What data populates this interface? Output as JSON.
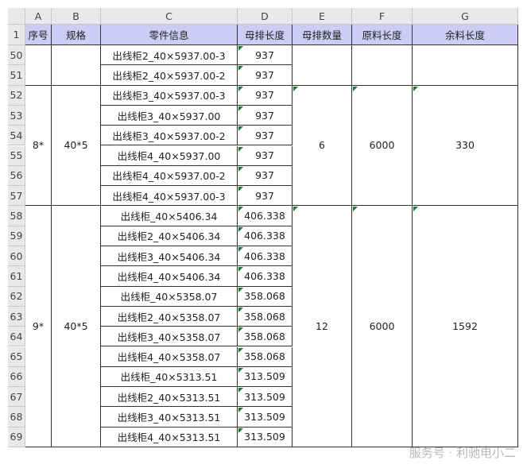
{
  "column_headers": [
    "A",
    "B",
    "C",
    "D",
    "E",
    "F",
    "G"
  ],
  "header_row": {
    "number": 1,
    "cells": [
      "序号",
      "规格",
      "零件信息",
      "母排长度",
      "母排数量",
      "原料长度",
      "余料长度"
    ]
  },
  "groups": [
    {
      "rows": [
        {
          "number": 50,
          "part": "出线柜2_40×5937.00-3",
          "length": 937
        },
        {
          "number": 51,
          "part": "出线柜2_40×5937.00-2",
          "length": 937
        }
      ]
    },
    {
      "no": "8*",
      "spec": "40*5",
      "count": 6,
      "raw": 6000,
      "rest": 330,
      "rows": [
        {
          "number": 52,
          "part": "出线柜3_40×5937.00-3",
          "length": 937
        },
        {
          "number": 53,
          "part": "出线柜3_40×5937.00",
          "length": 937
        },
        {
          "number": 54,
          "part": "出线柜3_40×5937.00-2",
          "length": 937
        },
        {
          "number": 55,
          "part": "出线柜4_40×5937.00",
          "length": 937
        },
        {
          "number": 56,
          "part": "出线柜4_40×5937.00-2",
          "length": 937
        },
        {
          "number": 57,
          "part": "出线柜4_40×5937.00-3",
          "length": 937
        }
      ]
    },
    {
      "no": "9*",
      "spec": "40*5",
      "count": 12,
      "raw": 6000,
      "rest": 1592,
      "rows": [
        {
          "number": 58,
          "part": "出线柜_40×5406.34",
          "length": 406.338
        },
        {
          "number": 59,
          "part": "出线柜2_40×5406.34",
          "length": 406.338
        },
        {
          "number": 60,
          "part": "出线柜3_40×5406.34",
          "length": 406.338
        },
        {
          "number": 61,
          "part": "出线柜4_40×5406.34",
          "length": 406.338
        },
        {
          "number": 62,
          "part": "出线柜_40×5358.07",
          "length": 358.068
        },
        {
          "number": 63,
          "part": "出线柜2_40×5358.07",
          "length": 358.068
        },
        {
          "number": 64,
          "part": "出线柜3_40×5358.07",
          "length": 358.068
        },
        {
          "number": 65,
          "part": "出线柜4_40×5358.07",
          "length": 358.068
        },
        {
          "number": 66,
          "part": "出线柜_40×5313.51",
          "length": 313.509
        },
        {
          "number": 67,
          "part": "出线柜2_40×5313.51",
          "length": 313.509
        },
        {
          "number": 68,
          "part": "出线柜3_40×5313.51",
          "length": 313.509
        },
        {
          "number": 69,
          "part": "出线柜4_40×5313.51",
          "length": 313.509
        }
      ]
    }
  ],
  "watermark": "服务号 · 利驰电小二"
}
